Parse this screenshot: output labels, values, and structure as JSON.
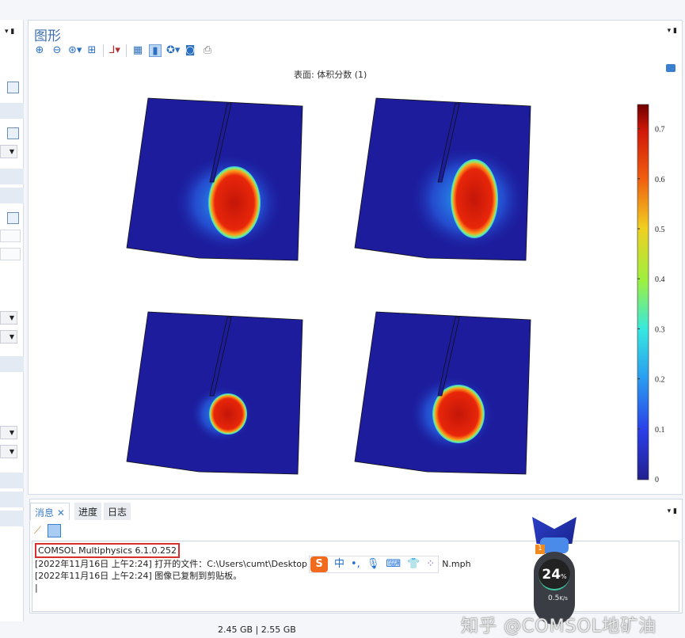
{
  "graphics": {
    "title": "图形",
    "plot_title": "表面: 体积分数 (1)",
    "toolbar": [
      "zoom-in-icon",
      "zoom-out-icon",
      "zoom-box-icon",
      "zoom-extents-icon",
      "axis-orientation-icon",
      "grid-icon",
      "legend-toggle-icon",
      "scene-light-icon",
      "camera-icon",
      "print-icon"
    ],
    "colorbar": {
      "colormap": "rainbow",
      "min": 0,
      "max": 0.75,
      "ticks": [
        "0",
        "0.1",
        "0.2",
        "0.3",
        "0.4",
        "0.5",
        "0.6",
        "0.7"
      ]
    }
  },
  "messages": {
    "tabs": [
      {
        "label": "消息",
        "close": "✕"
      },
      {
        "label": "进度"
      },
      {
        "label": "日志"
      }
    ],
    "lines": [
      "COMSOL Multiphysics 6.1.0.252",
      "[2022年11月16日 上午2:24] 打开的文件：C:\\Users\\cumt\\Desktop",
      "N.mph",
      "[2022年11月16日 上午2:24] 图像已复制到剪贴板。"
    ]
  },
  "ime": {
    "mode": "中",
    "punct": "•,"
  },
  "status": {
    "memory": "2.45 GB | 2.55 GB"
  },
  "widget": {
    "percent": "24",
    "unit": "%",
    "speed": "0.5",
    "speed_unit": "K/s",
    "badge": "1"
  },
  "watermark": "知乎 @COMSOL地矿油",
  "colors": {
    "accent": "#3d7fc8",
    "field_bg": "#1c1c9c",
    "highlight": "#d83030"
  }
}
